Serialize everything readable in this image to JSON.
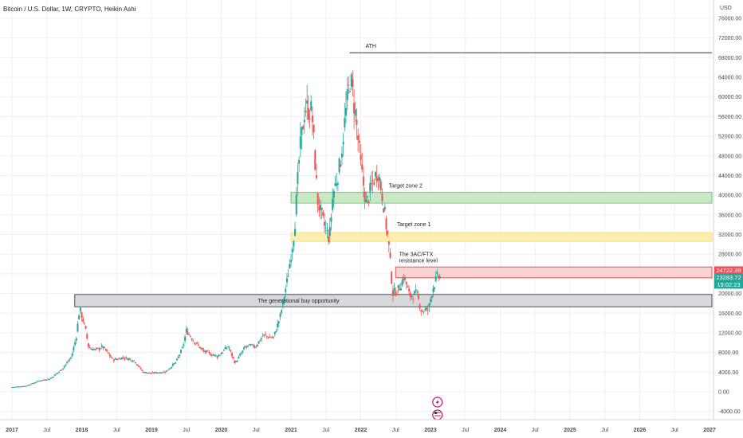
{
  "chart_data": {
    "type": "candlestick",
    "title": "Bitcoin / U.S. Dollar, 1W, CRYPTO, Heikin Ashi",
    "currency": "USD",
    "ylim": [
      -5000,
      77000
    ],
    "y_ticks": [
      -4000,
      0,
      4000,
      8000,
      12000,
      16000,
      20000,
      24000,
      28000,
      32000,
      36000,
      40000,
      44000,
      48000,
      52000,
      56000,
      60000,
      64000,
      68000,
      72000,
      76000
    ],
    "y_tick_labels": [
      "-4000.00",
      "0.00",
      "4000.00",
      "8000.00",
      "12000.00",
      "16000.00",
      "20000.00",
      "24000.00",
      "28000.00",
      "32000.00",
      "36000.00",
      "40000.00",
      "44000.00",
      "48000.00",
      "52000.00",
      "56000.00",
      "60000.00",
      "64000.00",
      "68000.00",
      "72000.00",
      "76000.00"
    ],
    "xlim": [
      2016.93,
      2027.3
    ],
    "x_ticks": [
      {
        "label": "2017",
        "t": 2017.0
      },
      {
        "label": "Jul",
        "t": 2017.5
      },
      {
        "label": "2018",
        "t": 2018.0
      },
      {
        "label": "Jul",
        "t": 2018.5
      },
      {
        "label": "2019",
        "t": 2019.0
      },
      {
        "label": "Jul",
        "t": 2019.5
      },
      {
        "label": "2020",
        "t": 2020.0
      },
      {
        "label": "Jul",
        "t": 2020.5
      },
      {
        "label": "2021",
        "t": 2021.0
      },
      {
        "label": "Jul",
        "t": 2021.5
      },
      {
        "label": "2022",
        "t": 2022.0
      },
      {
        "label": "Jul",
        "t": 2022.5
      },
      {
        "label": "2023",
        "t": 2023.0
      },
      {
        "label": "Jul",
        "t": 2023.5
      },
      {
        "label": "2024",
        "t": 2024.0
      },
      {
        "label": "Jul",
        "t": 2024.5
      },
      {
        "label": "2025",
        "t": 2025.0
      },
      {
        "label": "Jul",
        "t": 2025.5
      },
      {
        "label": "2026",
        "t": 2026.0
      },
      {
        "label": "Jul",
        "t": 2026.5
      },
      {
        "label": "2027",
        "t": 2027.0
      }
    ],
    "price_path": [
      [
        2017.0,
        960
      ],
      [
        2017.2,
        1200
      ],
      [
        2017.4,
        2300
      ],
      [
        2017.55,
        2700
      ],
      [
        2017.7,
        4400
      ],
      [
        2017.85,
        7000
      ],
      [
        2017.92,
        11000
      ],
      [
        2017.97,
        17000
      ],
      [
        2018.05,
        13000
      ],
      [
        2018.1,
        9000
      ],
      [
        2018.2,
        8500
      ],
      [
        2018.3,
        9200
      ],
      [
        2018.45,
        6500
      ],
      [
        2018.6,
        7000
      ],
      [
        2018.75,
        6400
      ],
      [
        2018.88,
        4000
      ],
      [
        2019.0,
        3800
      ],
      [
        2019.2,
        4100
      ],
      [
        2019.35,
        6000
      ],
      [
        2019.45,
        9000
      ],
      [
        2019.5,
        12500
      ],
      [
        2019.6,
        10500
      ],
      [
        2019.75,
        8200
      ],
      [
        2019.95,
        7200
      ],
      [
        2020.1,
        9300
      ],
      [
        2020.2,
        5800
      ],
      [
        2020.35,
        9200
      ],
      [
        2020.5,
        9400
      ],
      [
        2020.6,
        11500
      ],
      [
        2020.75,
        11000
      ],
      [
        2020.85,
        15500
      ],
      [
        2020.95,
        23000
      ],
      [
        2021.05,
        33000
      ],
      [
        2021.12,
        48000
      ],
      [
        2021.2,
        58000
      ],
      [
        2021.3,
        57000
      ],
      [
        2021.38,
        39000
      ],
      [
        2021.45,
        35000
      ],
      [
        2021.55,
        31000
      ],
      [
        2021.6,
        40000
      ],
      [
        2021.7,
        46000
      ],
      [
        2021.78,
        56000
      ],
      [
        2021.85,
        64000
      ],
      [
        2021.92,
        57000
      ],
      [
        2022.0,
        46000
      ],
      [
        2022.08,
        38000
      ],
      [
        2022.18,
        43000
      ],
      [
        2022.25,
        45000
      ],
      [
        2022.32,
        39000
      ],
      [
        2022.4,
        30000
      ],
      [
        2022.46,
        20000
      ],
      [
        2022.55,
        21000
      ],
      [
        2022.62,
        23500
      ],
      [
        2022.7,
        19500
      ],
      [
        2022.8,
        20000
      ],
      [
        2022.87,
        16500
      ],
      [
        2022.97,
        16700
      ],
      [
        2023.03,
        21000
      ],
      [
        2023.1,
        23500
      ],
      [
        2023.14,
        23283
      ]
    ],
    "candle_up_color": "#26a69a",
    "candle_down_color": "#ef5350",
    "zones": [
      {
        "label": "The generational buy opportunity",
        "y0": 17300,
        "y1": 19800,
        "x0": 2017.9,
        "fill": "#d7d9dd",
        "stroke": "#4d4d4d"
      },
      {
        "label": "Target zone 1",
        "y0": 30600,
        "y1": 32400,
        "x0": 2021.0,
        "fill": "#fbeeb0",
        "stroke": "#f7e27a"
      },
      {
        "label": "Target zone 2",
        "y0": 38400,
        "y1": 40600,
        "x0": 2021.0,
        "fill": "#c9e8c6",
        "stroke": "#7dc57a"
      },
      {
        "label": "The 3AC/FTX",
        "label2": "resistance level",
        "y0": 23200,
        "y1": 25400,
        "x0": 2022.5,
        "fill": "#f9d2d2",
        "stroke": "#e05454"
      }
    ],
    "ath": {
      "label": "ATH",
      "y": 69000,
      "x0": 2021.84
    },
    "price_labels": [
      {
        "text": "24722.39",
        "y": 24722,
        "color": "#f0525c"
      },
      {
        "text": "23283.72",
        "y": 23283,
        "color": "#26a69a"
      },
      {
        "text": "19:02:23",
        "y": 21800,
        "color": "#26a69a"
      }
    ],
    "event_icons": [
      {
        "name": "lightning-icon",
        "t": 2023.1,
        "y": -2000,
        "color": "#b1176c"
      },
      {
        "name": "us-flag-icon",
        "t": 2023.1,
        "y": -4300,
        "color": "#b1176c"
      }
    ],
    "grid": true,
    "grid_color": "#eef0f3"
  }
}
